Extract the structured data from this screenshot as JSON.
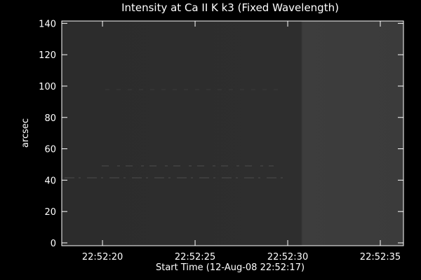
{
  "chart_data": {
    "type": "image",
    "title": "Intensity at Ca II K k3 (Fixed Wavelength)",
    "xlabel": "Start Time (12-Aug-08 22:52:17)",
    "ylabel": "arcsec",
    "xlim": [
      0.8,
      19.25
    ],
    "xticks": [
      {
        "value": 3,
        "label": "22:52:20"
      },
      {
        "value": 8,
        "label": "22:52:25"
      },
      {
        "value": 13,
        "label": "22:52:30"
      },
      {
        "value": 18,
        "label": "22:52:35"
      }
    ],
    "ylim": [
      -1.8,
      141.5
    ],
    "yticks": [
      0,
      20,
      40,
      60,
      80,
      100,
      120,
      140
    ]
  }
}
